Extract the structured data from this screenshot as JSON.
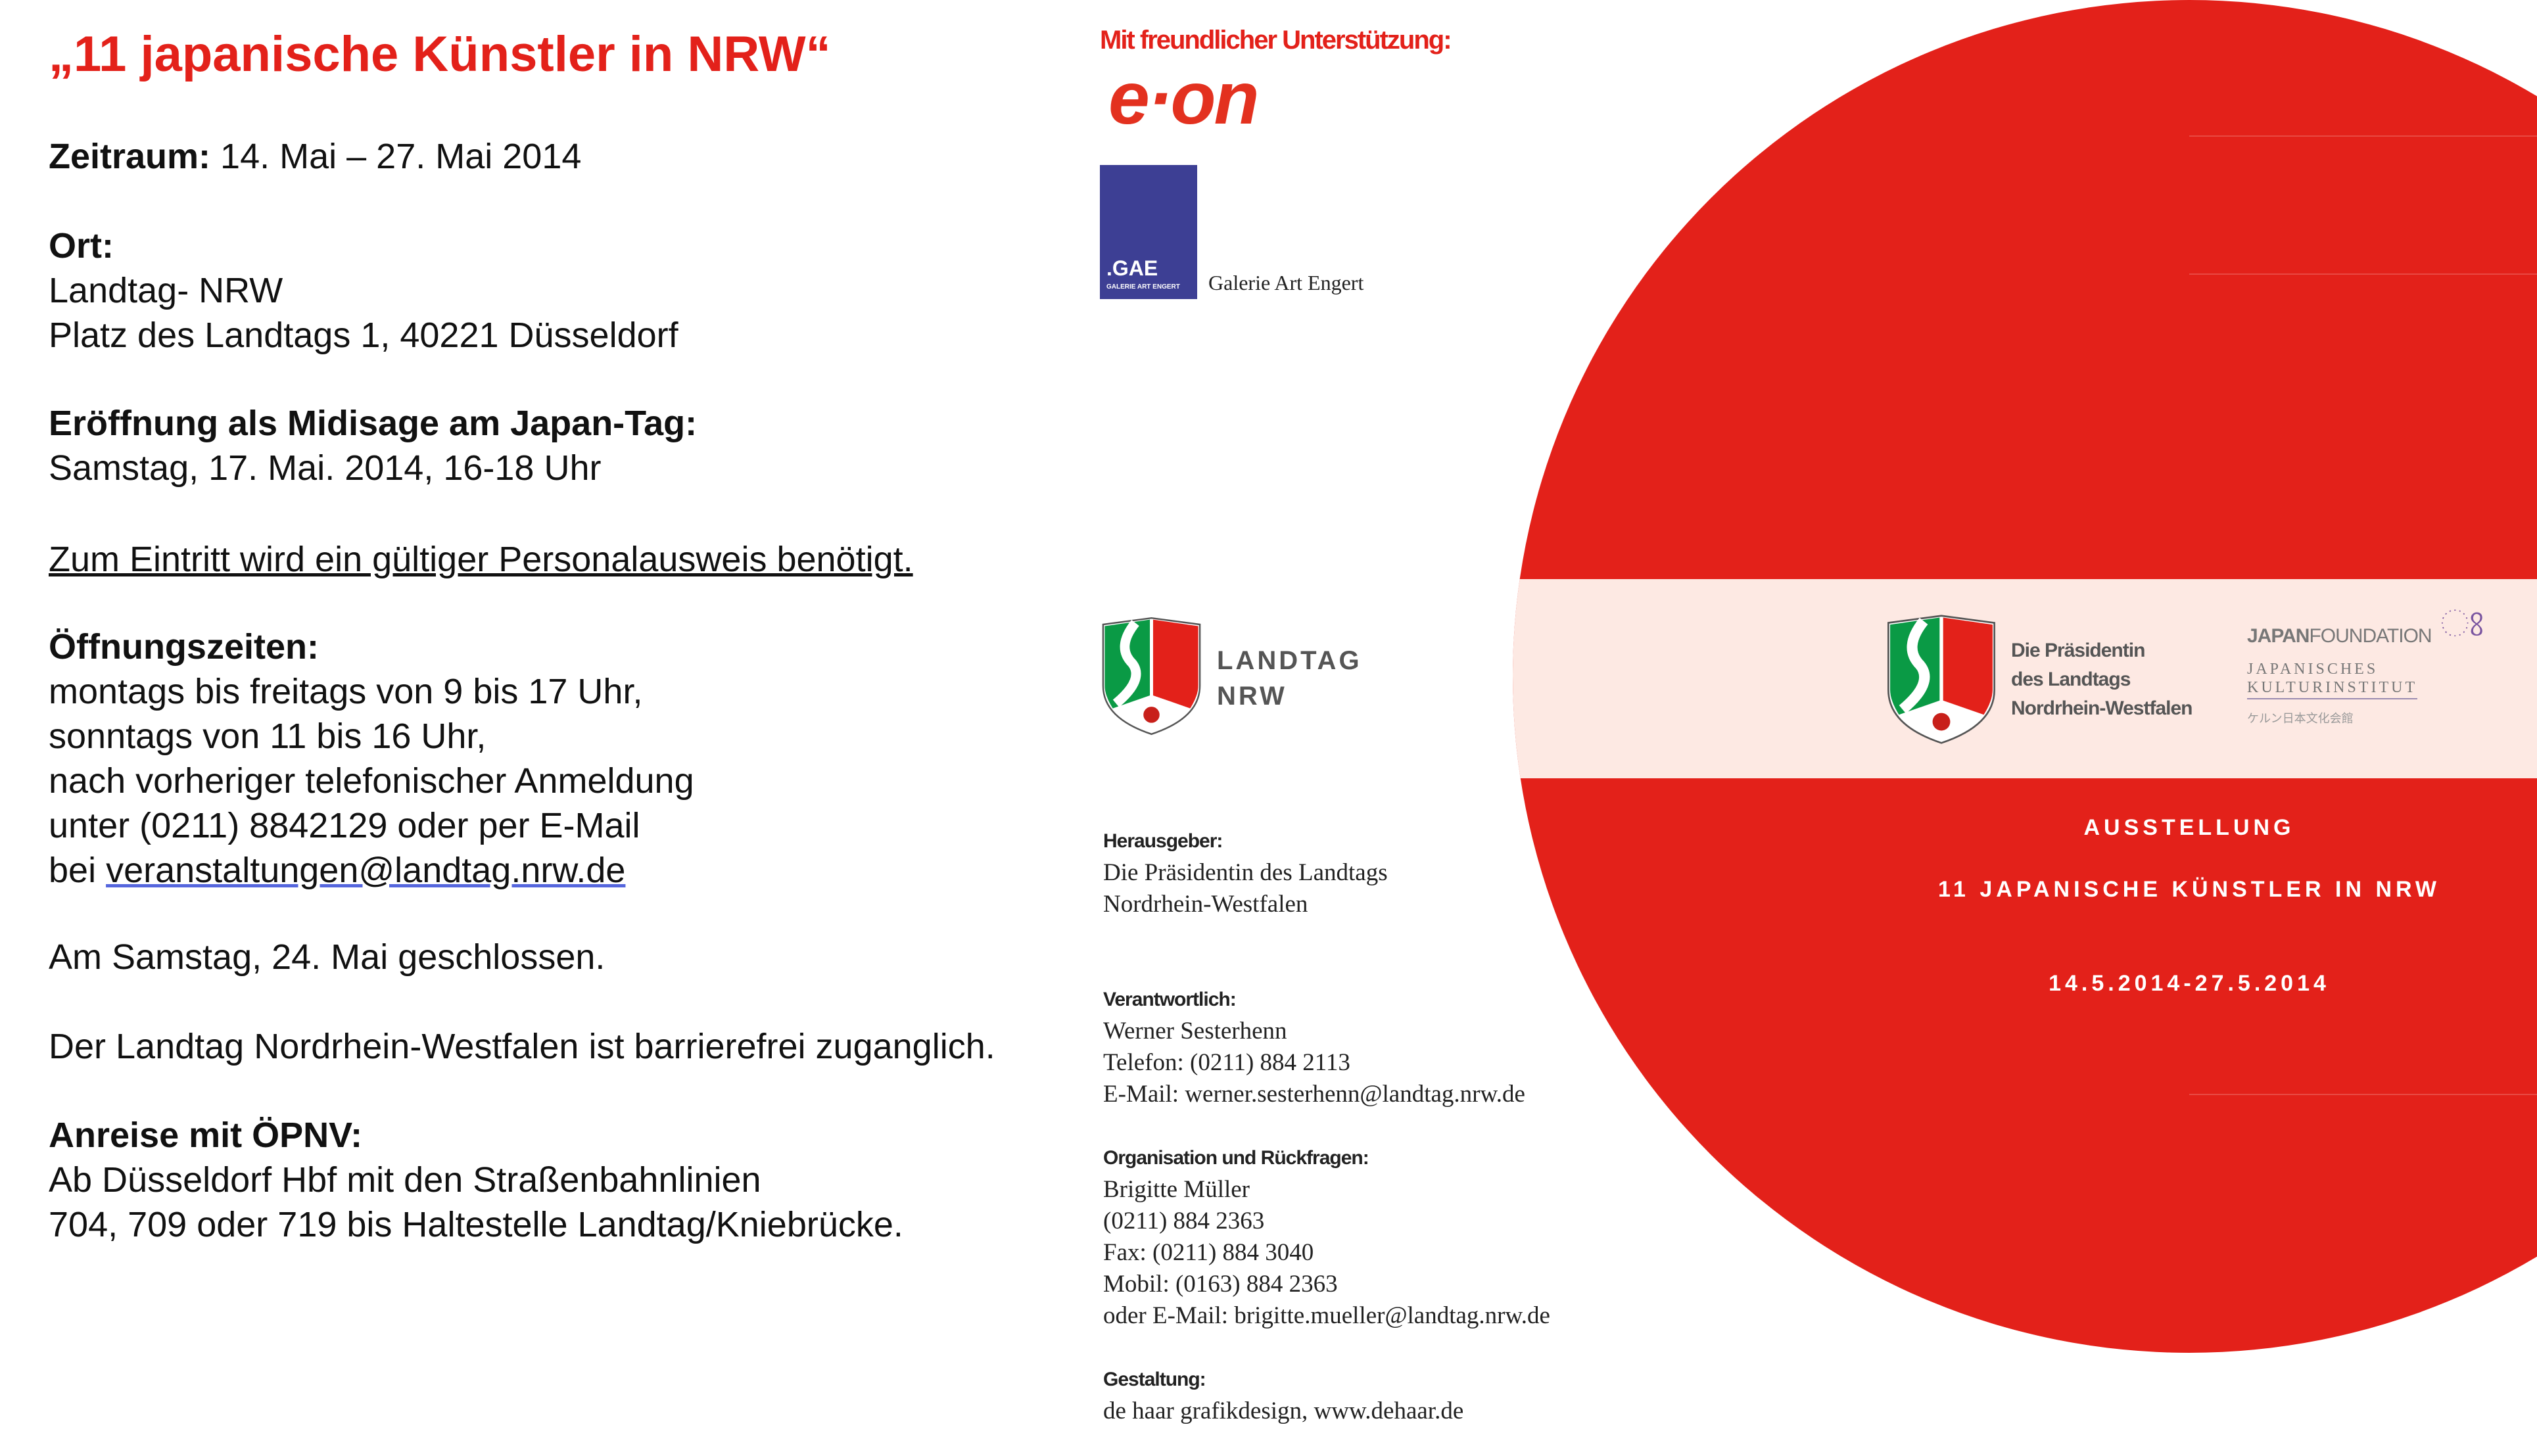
{
  "left": {
    "title": "„11 japanische Künstler in NRW“",
    "zeitraum_label": "Zeitraum:",
    "zeitraum_value": " 14. Mai – 27. Mai 2014",
    "ort_label": "Ort:",
    "ort_lines": [
      "Landtag- NRW",
      "Platz des Landtags 1, 40221 Düsseldorf"
    ],
    "eroeffnung_label": "Eröffnung als Midisage am Japan-Tag:",
    "eroeffnung_value": "Samstag, 17. Mai. 2014, 16-18 Uhr",
    "eintritt": "Zum Eintritt wird ein gültiger Personalausweis benötigt.",
    "oeffnung_label": "Öffnungszeiten:",
    "oeffnung_lines": [
      "montags bis freitags von 9 bis 17 Uhr,",
      "sonntags von 11 bis 16 Uhr,",
      "nach vorheriger telefonischer Anmeldung",
      "unter (0211) 8842129 oder per E-Mail"
    ],
    "email_prefix": "bei ",
    "email": "veranstaltungen@landtag.nrw.de",
    "geschlossen": "Am Samstag, 24. Mai geschlossen.",
    "barrierefrei": "Der Landtag Nordrhein-Westfalen ist barrierefrei zuganglich.",
    "anreise_label": "Anreise mit ÖPNV:",
    "anreise_lines": [
      "Ab Düsseldorf Hbf mit den Straßenbahnlinien",
      "704, 709 oder 719 bis Haltestelle Landtag/Kniebrücke."
    ]
  },
  "middle": {
    "support": "Mit freundlicher Unterstützung:",
    "eon_logo": "e·on",
    "gae_logo": ".GAE",
    "gae_sub": "GALERIE ART ENGERT",
    "gae_name": "Galerie Art Engert",
    "landtag_logo": [
      "LANDTAG",
      "NRW"
    ],
    "imprint": [
      {
        "heading": "Herausgeber:",
        "lines": [
          "Die Präsidentin des Landtags",
          "Nordrhein-Westfalen"
        ]
      },
      {
        "heading": "Verantwortlich:",
        "lines": [
          "Werner Sesterhenn",
          "Telefon: (0211) 884 2113",
          "E-Mail: werner.sesterhenn@landtag.nrw.de"
        ]
      },
      {
        "heading": "Organisation und Rückfragen:",
        "lines": [
          "Brigitte Müller",
          "(0211) 884 2363",
          "Fax: (0211) 884 3040",
          "Mobil: (0163) 884 2363",
          "oder E-Mail: brigitte.mueller@landtag.nrw.de"
        ]
      },
      {
        "heading": "Gestaltung:",
        "lines": [
          "de haar grafikdesign, www.dehaar.de"
        ]
      }
    ]
  },
  "right": {
    "praesidentin": [
      "Die Präsidentin",
      "des Landtags",
      "Nordrhein-Westfalen"
    ],
    "jf_bold": "JAPAN",
    "jf_light": "FOUNDATION",
    "jki": [
      "JAPANISCHES",
      "KULTURINSTITUT"
    ],
    "jp_text": "ケルン日本文化会館",
    "ausstellung": "AUSSTELLUNG",
    "exhibition_title": "11 JAPANISCHE KÜNSTLER IN NRW",
    "dates": "14.5.2014-27.5.2014",
    "colors": {
      "red": "#e3211a",
      "band": "#fde9e3",
      "gae_blue": "#3d3f94",
      "nrw_green": "#0a9a45",
      "jf_purple": "#7a55a0"
    }
  }
}
